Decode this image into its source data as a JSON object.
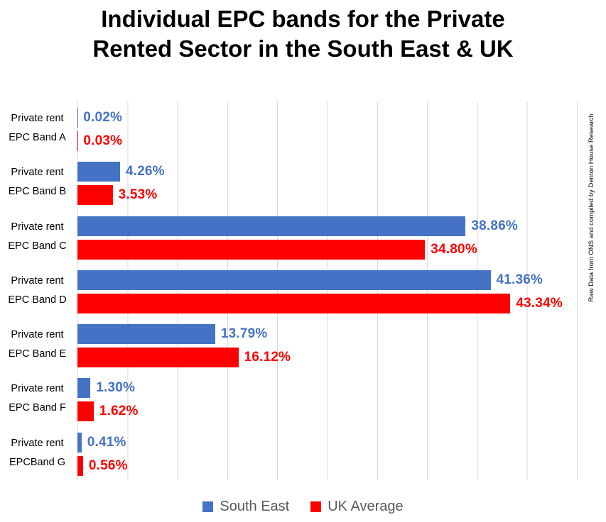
{
  "title": "Individual EPC bands for the Private Rented Sector in the South East & UK",
  "attribution": "Raw Data from ONS and compiled by Denton House Research",
  "legend": [
    {
      "label": "South East",
      "color": "#4472C4"
    },
    {
      "label": "UK Average",
      "color": "#FF0000"
    }
  ],
  "colors": {
    "south_east": "#4472C4",
    "uk_average": "#FF0000",
    "gridline": "#D9D9D9",
    "legend_text": "#595959",
    "title_text": "#000000"
  },
  "chart_data": {
    "type": "bar",
    "orientation": "horizontal",
    "title": "Individual EPC bands for the Private Rented Sector in the South East & UK",
    "categories": [
      {
        "line1": "Private rent",
        "line2": "EPC Band A"
      },
      {
        "line1": "Private rent",
        "line2": "EPC Band B"
      },
      {
        "line1": "Private rent",
        "line2": "EPC Band C"
      },
      {
        "line1": "Private rent",
        "line2": "EPC Band D"
      },
      {
        "line1": "Private rent",
        "line2": "EPC Band E"
      },
      {
        "line1": "Private rent",
        "line2": "EPC Band F"
      },
      {
        "line1": "Private rent",
        "line2": "EPCBand G"
      }
    ],
    "series": [
      {
        "name": "South East",
        "color": "#4472C4",
        "values": [
          0.02,
          4.26,
          38.86,
          41.36,
          13.79,
          1.3,
          0.41
        ],
        "labels": [
          "0.02%",
          "4.26%",
          "38.86%",
          "41.36%",
          "13.79%",
          "1.30%",
          "0.41%"
        ]
      },
      {
        "name": "UK Average",
        "color": "#FF0000",
        "values": [
          0.03,
          3.53,
          34.8,
          43.34,
          16.12,
          1.62,
          0.56
        ],
        "labels": [
          "0.03%",
          "3.53%",
          "34.80%",
          "43.34%",
          "16.12%",
          "1.62%",
          "0.56%"
        ]
      }
    ],
    "xlim": [
      0,
      50
    ],
    "gridline_interval": 5,
    "grid": true,
    "legend_position": "bottom",
    "data_labels": true
  }
}
